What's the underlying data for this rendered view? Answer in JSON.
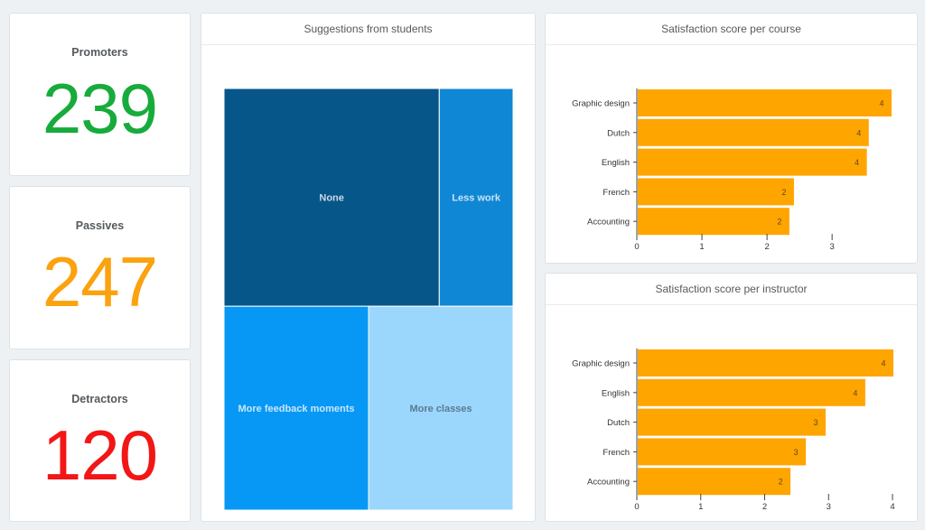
{
  "kpis": [
    {
      "label": "Promoters",
      "value": "239",
      "color": "#17ab3c"
    },
    {
      "label": "Passives",
      "value": "247",
      "color": "#fba20f"
    },
    {
      "label": "Detractors",
      "value": "120",
      "color": "#f21616"
    }
  ],
  "chart_data": [
    {
      "type": "treemap",
      "title": "Suggestions from students",
      "items": [
        {
          "label": "None",
          "value": 35,
          "color": "#075689"
        },
        {
          "label": "Less work",
          "value": 12,
          "color": "#0f87d5"
        },
        {
          "label": "More feedback moments",
          "value": 22,
          "color": "#0798f5"
        },
        {
          "label": "More classes",
          "value": 22,
          "color": "#9bd7fd"
        }
      ]
    },
    {
      "type": "bar",
      "orientation": "horizontal",
      "title": "Satisfaction score per course",
      "categories": [
        "Graphic design",
        "Dutch",
        "English",
        "French",
        "Accounting"
      ],
      "values": [
        3.9,
        3.55,
        3.52,
        2.4,
        2.33
      ],
      "data_labels": [
        "4",
        "4",
        "4",
        "2",
        "2"
      ],
      "xlim": [
        0,
        3.9
      ],
      "xticks": [
        0,
        1,
        2,
        3
      ],
      "bar_color": "#ffa500",
      "grid": false
    },
    {
      "type": "bar",
      "orientation": "horizontal",
      "title": "Satisfaction score per instructor",
      "categories": [
        "Graphic design",
        "English",
        "Dutch",
        "French",
        "Accounting"
      ],
      "values": [
        4.0,
        3.56,
        2.94,
        2.63,
        2.39
      ],
      "data_labels": [
        "4",
        "4",
        "3",
        "3",
        "2"
      ],
      "xlim": [
        0,
        4.0
      ],
      "xticks": [
        0,
        1,
        2,
        3,
        4
      ],
      "bar_color": "#ffa500",
      "grid": false
    }
  ]
}
